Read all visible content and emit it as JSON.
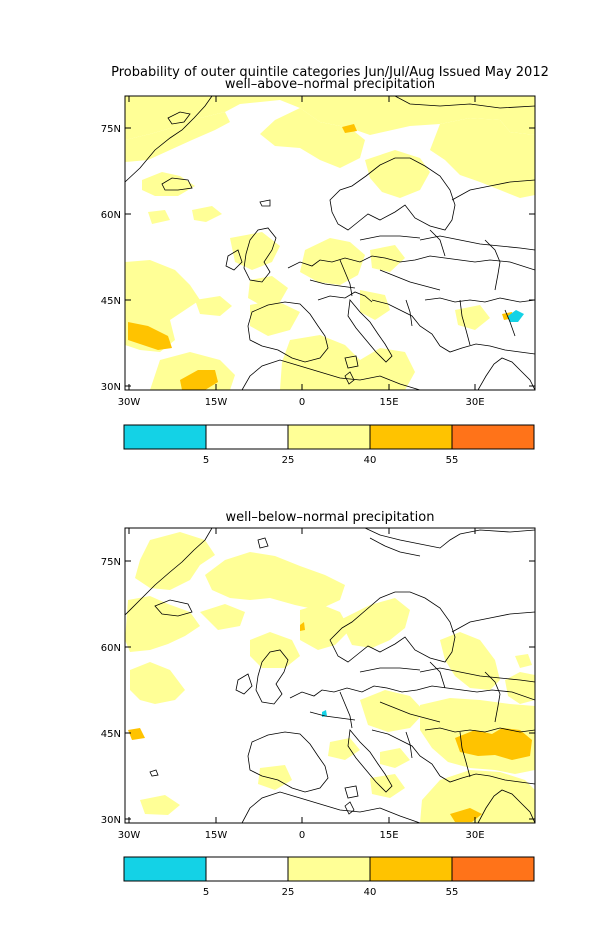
{
  "figure": {
    "title_line1": "Probability of outer quintile categories Jun/Jul/Aug Issued May 2012"
  },
  "panels": [
    {
      "subtitle": "well–above–normal precipitation",
      "lat_ticks": [
        "75N",
        "60N",
        "45N",
        "30N"
      ],
      "lon_ticks": [
        "30W",
        "15W",
        "0",
        "15E",
        "30E"
      ],
      "colorbar": {
        "colors": [
          "#14d2e6",
          "#ffffff",
          "#ffff96",
          "#ffc300",
          "#ff7319"
        ],
        "labels": [
          "5",
          "25",
          "40",
          "55"
        ]
      }
    },
    {
      "subtitle": "well–below–normal precipitation",
      "lat_ticks": [
        "75N",
        "60N",
        "45N",
        "30N"
      ],
      "lon_ticks": [
        "30W",
        "15W",
        "0",
        "15E",
        "30E"
      ],
      "colorbar": {
        "colors": [
          "#14d2e6",
          "#ffffff",
          "#ffff96",
          "#ffc300",
          "#ff7319"
        ],
        "labels": [
          "5",
          "25",
          "40",
          "55"
        ]
      }
    }
  ]
}
